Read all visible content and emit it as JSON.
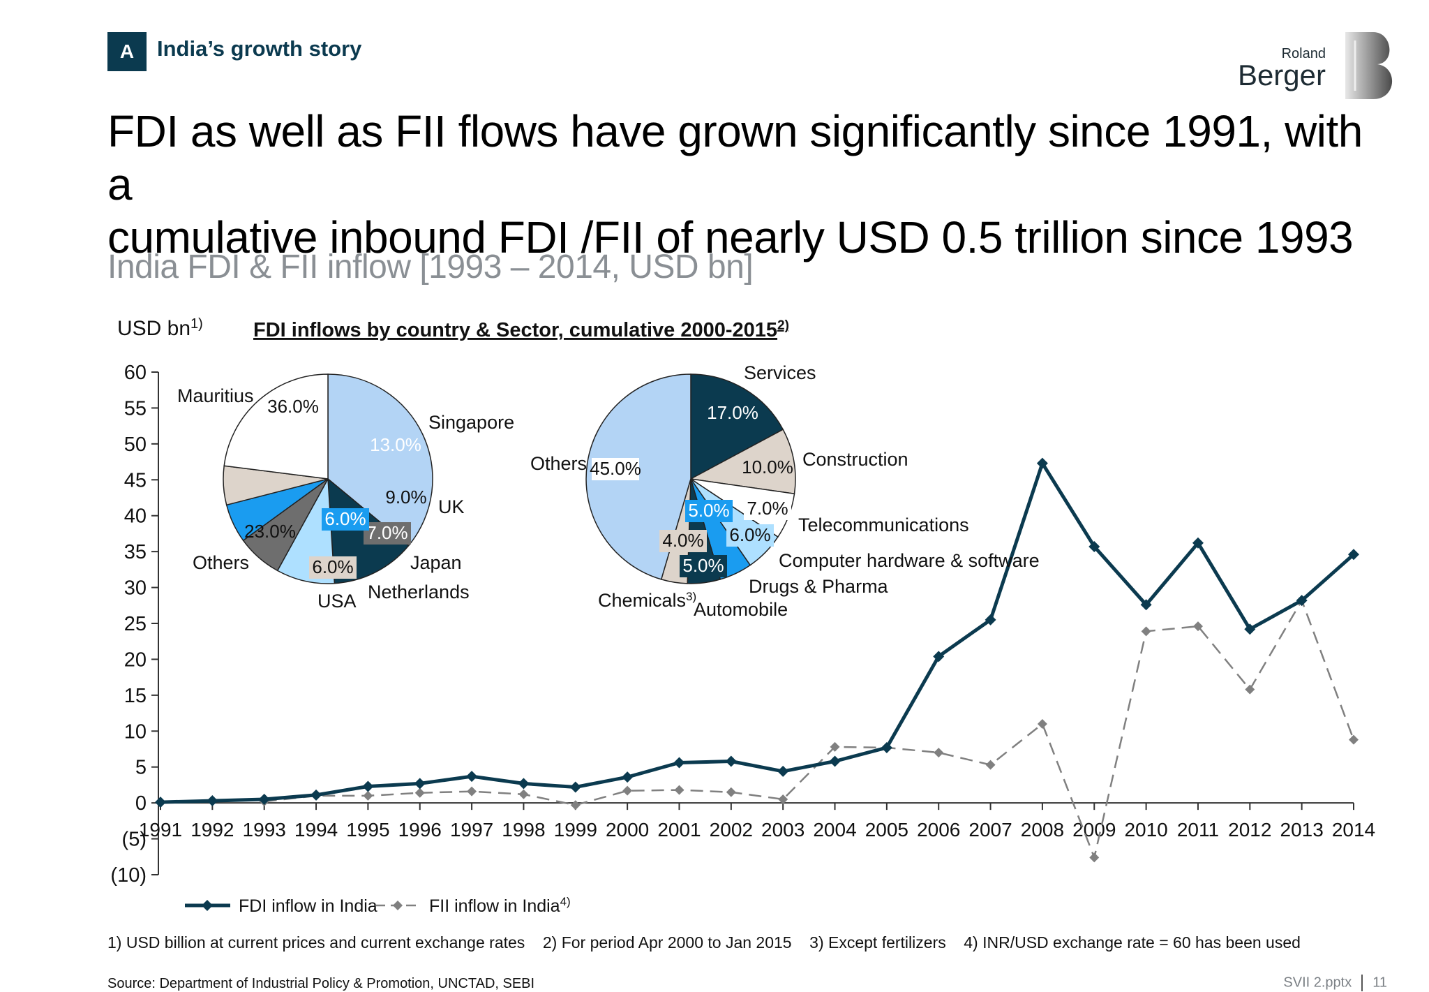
{
  "section": {
    "letter": "A",
    "title": "India’s growth story"
  },
  "logo": {
    "line1": "Roland",
    "line2": "Berger"
  },
  "headline": {
    "line1": "FDI as well as FII flows have grown significantly since 1991, with a",
    "line2": "cumulative inbound FDI /FII of nearly USD 0.5 trillion since 1993"
  },
  "subhead": "India FDI & FII inflow [1993 – 2014, USD bn]",
  "footnotes": "1) USD billion at current prices and current exchange rates    2) For period Apr 2000 to Jan 2015    3) Except fertilizers    4) INR/USD exchange rate = 60 has been used",
  "source": "Source: Department of Industrial Policy & Promotion, UNCTAD, SEBI",
  "page": {
    "file": "SVII 2.pptx",
    "number": "11"
  },
  "colors": {
    "fdi": "#0b3a4f",
    "fii": "#808080"
  },
  "chart_data": [
    {
      "type": "line",
      "ylabel": "USD bn",
      "ylabel_sup": "1)",
      "ylim": [
        -10,
        60
      ],
      "yticks": [
        60,
        55,
        50,
        45,
        40,
        35,
        30,
        25,
        20,
        15,
        10,
        5,
        0,
        -5,
        -10
      ],
      "ytick_labels": [
        "60",
        "55",
        "50",
        "45",
        "40",
        "35",
        "30",
        "25",
        "20",
        "15",
        "10",
        "5",
        "0",
        "(5)",
        "(10)"
      ],
      "x": [
        "1991",
        "1992",
        "1993",
        "1994",
        "1995",
        "1996",
        "1997",
        "1998",
        "1999",
        "2000",
        "2001",
        "2002",
        "2003",
        "2004",
        "2005",
        "2006",
        "2007",
        "2008",
        "2009",
        "2010",
        "2011",
        "2012",
        "2013",
        "2014"
      ],
      "legend": "bottom-left",
      "series": [
        {
          "name": "FDI inflow in India",
          "name_sup": "",
          "style": "solid",
          "values": [
            0.1,
            0.3,
            0.5,
            1.1,
            2.3,
            2.7,
            3.7,
            2.7,
            2.2,
            3.6,
            5.6,
            5.8,
            4.4,
            5.8,
            7.7,
            20.4,
            25.5,
            47.3,
            35.7,
            27.6,
            36.2,
            24.2,
            28.2,
            34.6
          ]
        },
        {
          "name": "FII inflow in India",
          "name_sup": "4)",
          "style": "dashed",
          "values": [
            null,
            null,
            0.2,
            1.0,
            1.0,
            1.4,
            1.6,
            1.2,
            -0.3,
            1.7,
            1.8,
            1.5,
            0.5,
            7.8,
            7.7,
            7.0,
            5.3,
            11.0,
            -7.6,
            23.9,
            24.6,
            15.8,
            28.2,
            8.8
          ]
        }
      ]
    },
    {
      "type": "pie",
      "title": "FDI inflows by country & Sector, cumulative 2000-2015",
      "title_sup": "2)",
      "subtitle": "country",
      "slices": [
        {
          "label": "Mauritius",
          "value": 36.0,
          "text": "36.0%",
          "color": "#b3d4f5"
        },
        {
          "label": "Singapore",
          "value": 13.0,
          "text": "13.0%",
          "color": "#0b3a4f"
        },
        {
          "label": "UK",
          "value": 9.0,
          "text": "9.0%",
          "color": "#aee0ff"
        },
        {
          "label": "Japan",
          "value": 7.0,
          "text": "7.0%",
          "color": "#6e6e6e"
        },
        {
          "label": "Netherlands",
          "value": 6.0,
          "text": "6.0%",
          "color": "#1a9cf0"
        },
        {
          "label": "USA",
          "value": 6.0,
          "text": "6.0%",
          "color": "#ddd4cb"
        },
        {
          "label": "Others",
          "value": 23.0,
          "text": "23.0%",
          "color": "#ffffff"
        }
      ]
    },
    {
      "type": "pie",
      "subtitle": "sector",
      "slices": [
        {
          "label": "Services",
          "value": 17.0,
          "text": "17.0%",
          "color": "#0b3a4f"
        },
        {
          "label": "Construction",
          "value": 10.0,
          "text": "10.0%",
          "color": "#ddd4cb"
        },
        {
          "label": "Telecommunications",
          "value": 7.0,
          "text": "7.0%",
          "color": "#ffffff"
        },
        {
          "label": "Computer hardware & software",
          "value": 6.0,
          "text": "6.0%",
          "color": "#aee0ff"
        },
        {
          "label": "Drugs & Pharma",
          "value": 5.0,
          "text": "5.0%",
          "color": "#1a9cf0"
        },
        {
          "label": "Automobile",
          "value": 5.0,
          "text": "5.0%",
          "color": "#0b3a4f"
        },
        {
          "label": "Chemicals",
          "label_sup": "3)",
          "value": 4.0,
          "text": "4.0%",
          "color": "#ddd4cb"
        },
        {
          "label": "Others",
          "value": 45.0,
          "text": "45.0%",
          "color": "#b3d4f5"
        }
      ]
    }
  ]
}
